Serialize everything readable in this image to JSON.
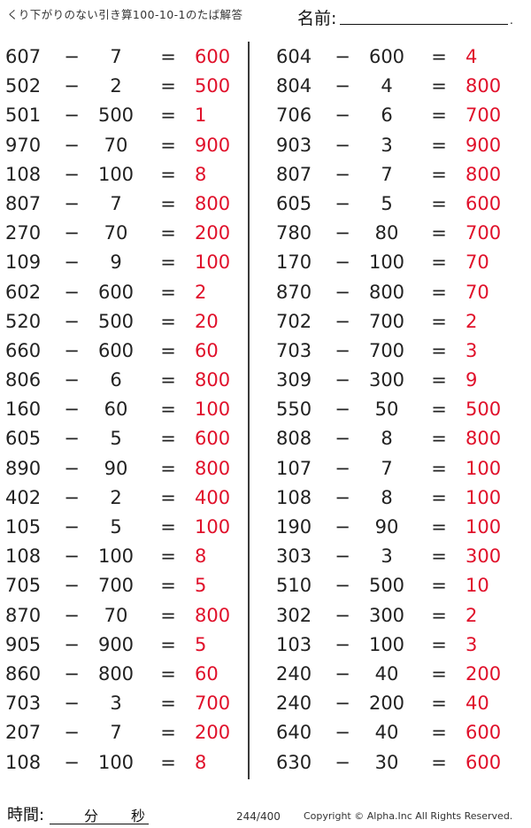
{
  "header": {
    "title": "くり下がりのない引き算100-10-1のたば解答",
    "name_label": "名前:",
    "name_end": "."
  },
  "symbols": {
    "minus": "−",
    "equals": "="
  },
  "problems": {
    "left": [
      {
        "a": "607",
        "b": "7",
        "answer": "600"
      },
      {
        "a": "502",
        "b": "2",
        "answer": "500"
      },
      {
        "a": "501",
        "b": "500",
        "answer": "1"
      },
      {
        "a": "970",
        "b": "70",
        "answer": "900"
      },
      {
        "a": "108",
        "b": "100",
        "answer": "8"
      },
      {
        "a": "807",
        "b": "7",
        "answer": "800"
      },
      {
        "a": "270",
        "b": "70",
        "answer": "200"
      },
      {
        "a": "109",
        "b": "9",
        "answer": "100"
      },
      {
        "a": "602",
        "b": "600",
        "answer": "2"
      },
      {
        "a": "520",
        "b": "500",
        "answer": "20"
      },
      {
        "a": "660",
        "b": "600",
        "answer": "60"
      },
      {
        "a": "806",
        "b": "6",
        "answer": "800"
      },
      {
        "a": "160",
        "b": "60",
        "answer": "100"
      },
      {
        "a": "605",
        "b": "5",
        "answer": "600"
      },
      {
        "a": "890",
        "b": "90",
        "answer": "800"
      },
      {
        "a": "402",
        "b": "2",
        "answer": "400"
      },
      {
        "a": "105",
        "b": "5",
        "answer": "100"
      },
      {
        "a": "108",
        "b": "100",
        "answer": "8"
      },
      {
        "a": "705",
        "b": "700",
        "answer": "5"
      },
      {
        "a": "870",
        "b": "70",
        "answer": "800"
      },
      {
        "a": "905",
        "b": "900",
        "answer": "5"
      },
      {
        "a": "860",
        "b": "800",
        "answer": "60"
      },
      {
        "a": "703",
        "b": "3",
        "answer": "700"
      },
      {
        "a": "207",
        "b": "7",
        "answer": "200"
      },
      {
        "a": "108",
        "b": "100",
        "answer": "8"
      }
    ],
    "right": [
      {
        "a": "604",
        "b": "600",
        "answer": "4"
      },
      {
        "a": "804",
        "b": "4",
        "answer": "800"
      },
      {
        "a": "706",
        "b": "6",
        "answer": "700"
      },
      {
        "a": "903",
        "b": "3",
        "answer": "900"
      },
      {
        "a": "807",
        "b": "7",
        "answer": "800"
      },
      {
        "a": "605",
        "b": "5",
        "answer": "600"
      },
      {
        "a": "780",
        "b": "80",
        "answer": "700"
      },
      {
        "a": "170",
        "b": "100",
        "answer": "70"
      },
      {
        "a": "870",
        "b": "800",
        "answer": "70"
      },
      {
        "a": "702",
        "b": "700",
        "answer": "2"
      },
      {
        "a": "703",
        "b": "700",
        "answer": "3"
      },
      {
        "a": "309",
        "b": "300",
        "answer": "9"
      },
      {
        "a": "550",
        "b": "50",
        "answer": "500"
      },
      {
        "a": "808",
        "b": "8",
        "answer": "800"
      },
      {
        "a": "107",
        "b": "7",
        "answer": "100"
      },
      {
        "a": "108",
        "b": "8",
        "answer": "100"
      },
      {
        "a": "190",
        "b": "90",
        "answer": "100"
      },
      {
        "a": "303",
        "b": "3",
        "answer": "300"
      },
      {
        "a": "510",
        "b": "500",
        "answer": "10"
      },
      {
        "a": "302",
        "b": "300",
        "answer": "2"
      },
      {
        "a": "103",
        "b": "100",
        "answer": "3"
      },
      {
        "a": "240",
        "b": "40",
        "answer": "200"
      },
      {
        "a": "240",
        "b": "200",
        "answer": "40"
      },
      {
        "a": "640",
        "b": "40",
        "answer": "600"
      },
      {
        "a": "630",
        "b": "30",
        "answer": "600"
      }
    ]
  },
  "footer": {
    "time_label": "時間:",
    "minutes_label": "分",
    "seconds_label": "秒",
    "page": "244/400",
    "copyright": "Copyright ©  Alpha.Inc All Rights Reserved."
  },
  "colors": {
    "answer": "#e0102a",
    "text": "#222222"
  }
}
